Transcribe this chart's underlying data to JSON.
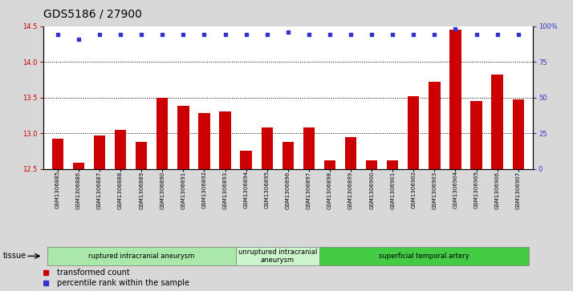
{
  "title": "GDS5186 / 27900",
  "samples": [
    "GSM1306885",
    "GSM1306886",
    "GSM1306887",
    "GSM1306888",
    "GSM1306889",
    "GSM1306890",
    "GSM1306891",
    "GSM1306892",
    "GSM1306893",
    "GSM1306894",
    "GSM1306895",
    "GSM1306896",
    "GSM1306897",
    "GSM1306898",
    "GSM1306899",
    "GSM1306900",
    "GSM1306901",
    "GSM1306902",
    "GSM1306903",
    "GSM1306904",
    "GSM1306905",
    "GSM1306906",
    "GSM1306907"
  ],
  "bar_values": [
    12.92,
    12.58,
    12.97,
    13.05,
    12.88,
    13.5,
    13.38,
    13.28,
    13.3,
    12.75,
    13.08,
    12.88,
    13.08,
    12.62,
    12.95,
    12.62,
    12.62,
    13.52,
    13.72,
    14.45,
    13.45,
    13.82,
    13.47
  ],
  "percentile_left_vals": [
    14.38,
    14.32,
    14.38,
    14.38,
    14.38,
    14.38,
    14.38,
    14.38,
    14.38,
    14.38,
    14.38,
    14.42,
    14.38,
    14.38,
    14.38,
    14.38,
    14.38,
    14.38,
    14.38,
    14.46,
    14.38,
    14.38,
    14.38
  ],
  "ylim_left": [
    12.5,
    14.5
  ],
  "ylim_right": [
    0,
    100
  ],
  "yticks_left": [
    12.5,
    13.0,
    13.5,
    14.0,
    14.5
  ],
  "yticks_right": [
    0,
    25,
    50,
    75,
    100
  ],
  "bar_color": "#cc0000",
  "dot_color": "#3333cc",
  "groups": [
    {
      "label": "ruptured intracranial aneurysm",
      "start": 0,
      "end": 9,
      "color": "#aae8aa"
    },
    {
      "label": "unruptured intracranial\naneurysm",
      "start": 9,
      "end": 13,
      "color": "#ccf5cc"
    },
    {
      "label": "superficial temporal artery",
      "start": 13,
      "end": 23,
      "color": "#44cc44"
    }
  ],
  "bg_color": "#d8d8d8",
  "plot_bg_color": "#ffffff",
  "title_fontsize": 10,
  "tick_fontsize": 6,
  "bar_width": 0.55
}
